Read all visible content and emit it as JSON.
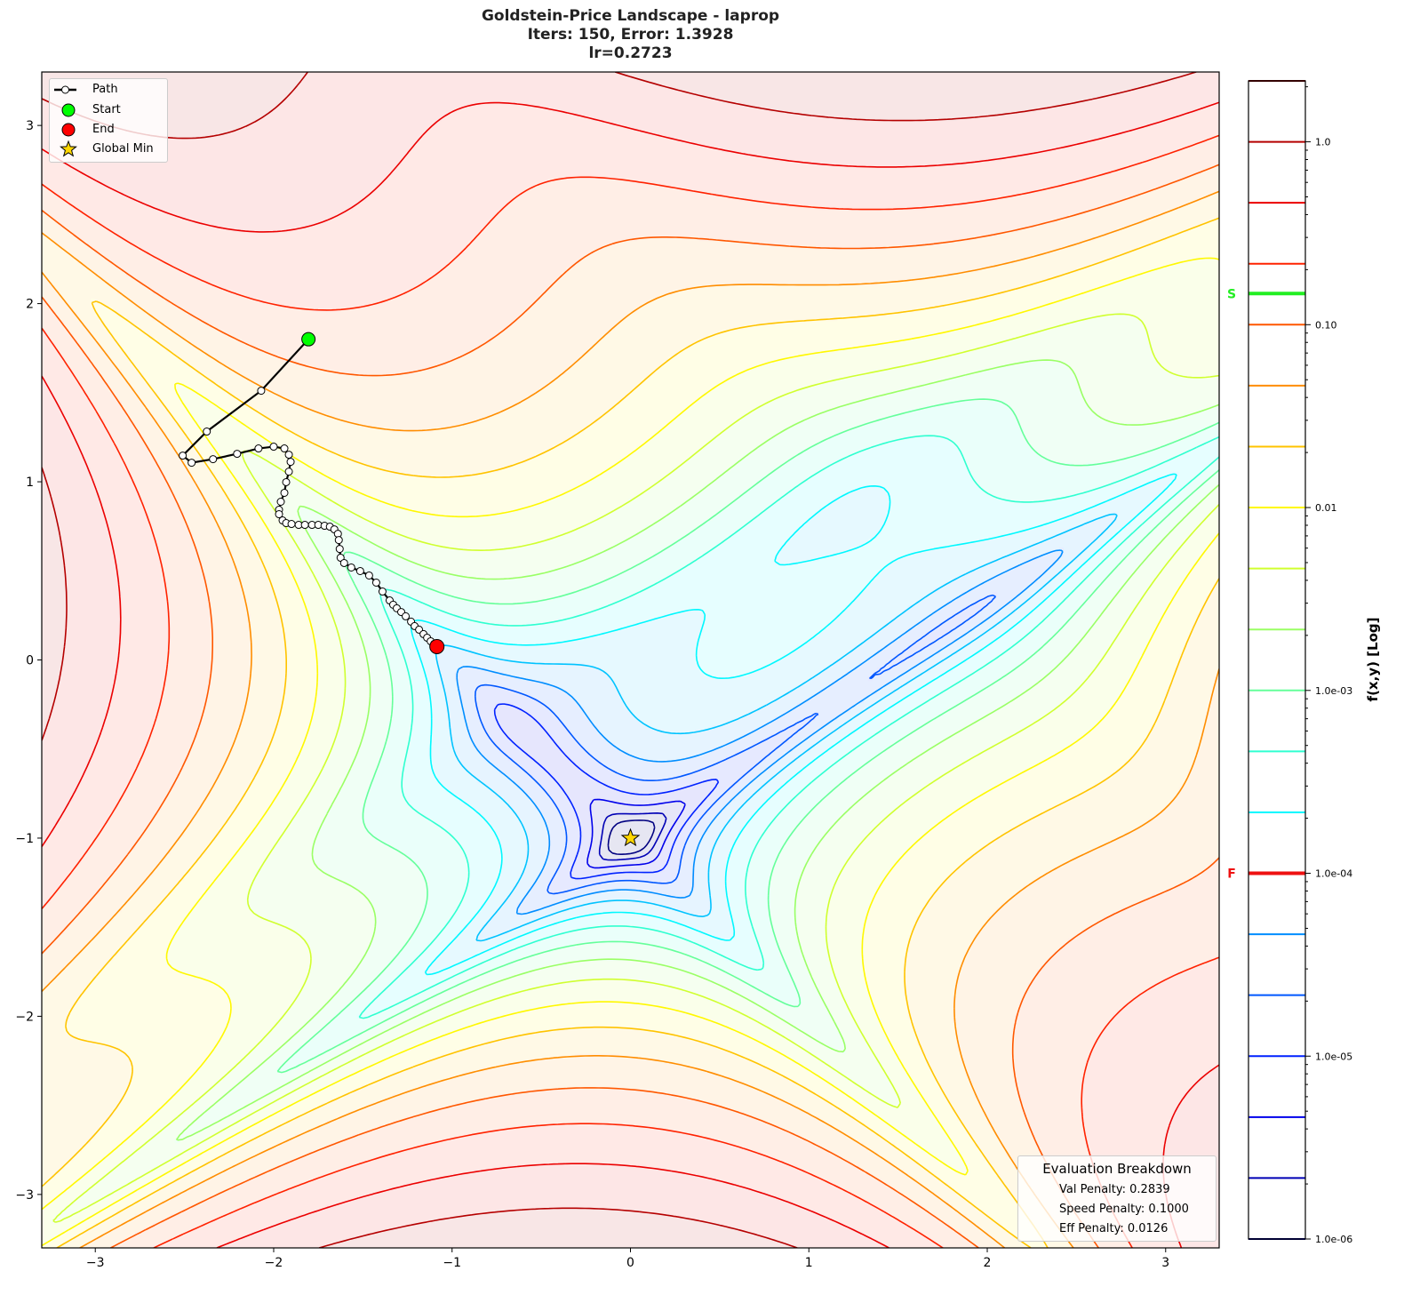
{
  "title": [
    "Goldstein-Price Landscape - laprop",
    "Iters: 150, Error: 1.3928",
    "lr=0.2723"
  ],
  "chart_data": {
    "type": "contour",
    "function": "Goldstein-Price (normalized, log-spaced contour levels)",
    "xlim": [
      -3.3,
      3.3
    ],
    "ylim": [
      -3.3,
      3.3
    ],
    "xticks": [
      -3,
      -2,
      -1,
      0,
      1,
      2,
      3
    ],
    "yticks": [
      -3,
      -2,
      -1,
      0,
      1,
      2,
      3
    ],
    "xtick_labels": [
      "−3",
      "−2",
      "−1",
      "0",
      "1",
      "2",
      "3"
    ],
    "ytick_labels": [
      "−3",
      "−2",
      "−1",
      "0",
      "1",
      "2",
      "3"
    ],
    "colormap": "jet",
    "levels_log10_range": [
      -6,
      0.3333
    ],
    "level_count": 20,
    "normalization_scale": 4400000,
    "function_min": 3,
    "path": [
      [
        -1.805,
        1.8
      ],
      [
        -2.07,
        1.511
      ],
      [
        -2.375,
        1.282
      ],
      [
        -2.51,
        1.147
      ],
      [
        -2.46,
        1.107
      ],
      [
        -2.34,
        1.127
      ],
      [
        -2.205,
        1.157
      ],
      [
        -2.085,
        1.187
      ],
      [
        -2.0,
        1.197
      ],
      [
        -1.94,
        1.187
      ],
      [
        -1.915,
        1.152
      ],
      [
        -1.905,
        1.112
      ],
      [
        -1.915,
        1.057
      ],
      [
        -1.93,
        0.998
      ],
      [
        -1.94,
        0.938
      ],
      [
        -1.96,
        0.888
      ],
      [
        -1.97,
        0.843
      ],
      [
        -1.97,
        0.818
      ],
      [
        -1.95,
        0.783
      ],
      [
        -1.93,
        0.768
      ],
      [
        -1.9,
        0.763
      ],
      [
        -1.86,
        0.758
      ],
      [
        -1.825,
        0.758
      ],
      [
        -1.785,
        0.758
      ],
      [
        -1.75,
        0.758
      ],
      [
        -1.715,
        0.753
      ],
      [
        -1.685,
        0.748
      ],
      [
        -1.66,
        0.733
      ],
      [
        -1.64,
        0.708
      ],
      [
        -1.635,
        0.673
      ],
      [
        -1.63,
        0.623
      ],
      [
        -1.625,
        0.574
      ],
      [
        -1.605,
        0.544
      ],
      [
        -1.565,
        0.519
      ],
      [
        -1.515,
        0.499
      ],
      [
        -1.465,
        0.474
      ],
      [
        -1.425,
        0.434
      ],
      [
        -1.39,
        0.384
      ],
      [
        -1.35,
        0.334
      ],
      [
        -1.33,
        0.31
      ],
      [
        -1.31,
        0.29
      ],
      [
        -1.285,
        0.269
      ],
      [
        -1.26,
        0.245
      ],
      [
        -1.23,
        0.215
      ],
      [
        -1.21,
        0.19
      ],
      [
        -1.185,
        0.17
      ],
      [
        -1.16,
        0.145
      ],
      [
        -1.14,
        0.125
      ],
      [
        -1.12,
        0.105
      ],
      [
        -1.1,
        0.09
      ],
      [
        -1.085,
        0.075
      ]
    ],
    "start": [
      -1.805,
      1.8
    ],
    "end": [
      -1.085,
      0.075
    ],
    "global_min": [
      0,
      -1
    ],
    "legend": {
      "placement": "upper-left",
      "entries": [
        "Path",
        "Start",
        "End",
        "Global Min"
      ]
    },
    "colorbar": {
      "label": "f(x,y) [Log]",
      "scale": "log",
      "range": [
        1e-06,
        2.154
      ],
      "tick_values": [
        1.0,
        0.1,
        0.01,
        0.001,
        0.0001,
        1e-05,
        1e-06
      ],
      "tick_labels": [
        "1.0",
        "0.10",
        "0.01",
        "1.0e-03",
        "1.0e-04",
        "1.0e-05",
        "1.0e-06"
      ],
      "markers": [
        {
          "label": "S",
          "value": 0.148,
          "color": "#22ee22"
        },
        {
          "label": "F",
          "value": 0.0001,
          "color": "#ee1111"
        }
      ]
    },
    "colors": {
      "path": "#000000",
      "start": "#00ff00",
      "end": "#ff0000",
      "global_min": "#ffd700"
    }
  },
  "evaluation": {
    "title": "Evaluation Breakdown",
    "lines": [
      "Val Penalty: 0.2839",
      "Speed Penalty: 0.1000",
      "Eff Penalty: 0.0126"
    ]
  }
}
